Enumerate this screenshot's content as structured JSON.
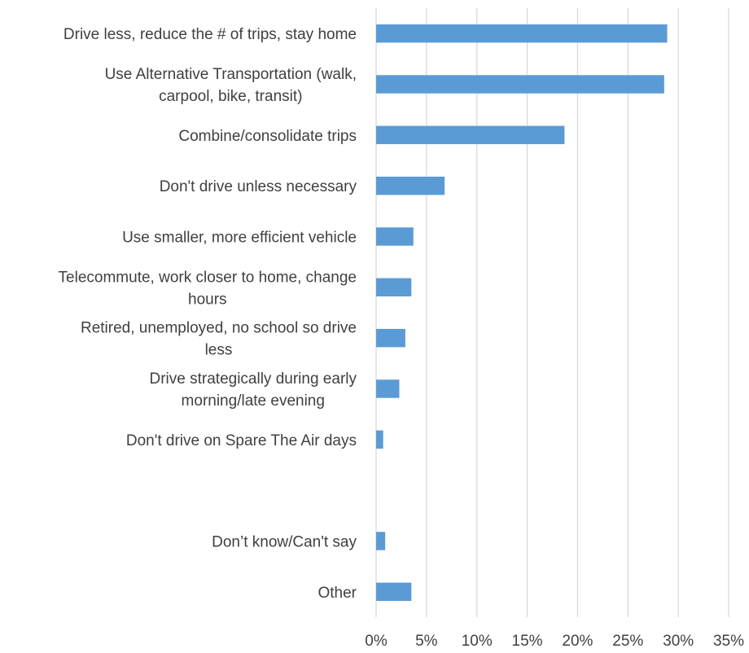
{
  "chart_data": {
    "type": "bar",
    "orientation": "horizontal",
    "categories": [
      "Drive less, reduce the # of trips, stay home",
      "Use Alternative Transportation (walk, carpool, bike, transit)",
      "Combine/consolidate trips",
      "Don't drive unless necessary",
      "Use smaller, more efficient vehicle",
      "Telecommute, work closer to home, change hours",
      "Retired, unemployed, no school so drive less",
      "Drive strategically during early morning/late evening",
      "Don't drive on Spare The Air days",
      "",
      "Don’t know/Can't say",
      "Other"
    ],
    "category_lines": [
      [
        "Drive less, reduce the # of trips, stay home"
      ],
      [
        "Use Alternative Transportation (walk,",
        "carpool, bike, transit)"
      ],
      [
        "Combine/consolidate trips"
      ],
      [
        "Don't drive unless necessary"
      ],
      [
        "Use smaller, more efficient vehicle"
      ],
      [
        "Telecommute, work closer to home, change",
        "hours"
      ],
      [
        "Retired, unemployed, no school so drive",
        "less"
      ],
      [
        "Drive strategically during early",
        "morning/late evening"
      ],
      [
        "Don't drive on Spare The Air days"
      ],
      [],
      [
        "Don’t know/Can't say"
      ],
      [
        "Other"
      ]
    ],
    "values": [
      28.9,
      28.6,
      18.7,
      6.8,
      3.7,
      3.5,
      2.9,
      2.3,
      0.7,
      null,
      0.9,
      3.5
    ],
    "xlim": [
      0,
      35
    ],
    "xticks": [
      "0%",
      "5%",
      "10%",
      "15%",
      "20%",
      "25%",
      "30%",
      "35%"
    ],
    "bar_color": "#5b9bd5",
    "grid_color": "#d9d9d9",
    "text_color": "#404040",
    "grid": true,
    "legend": "none"
  }
}
